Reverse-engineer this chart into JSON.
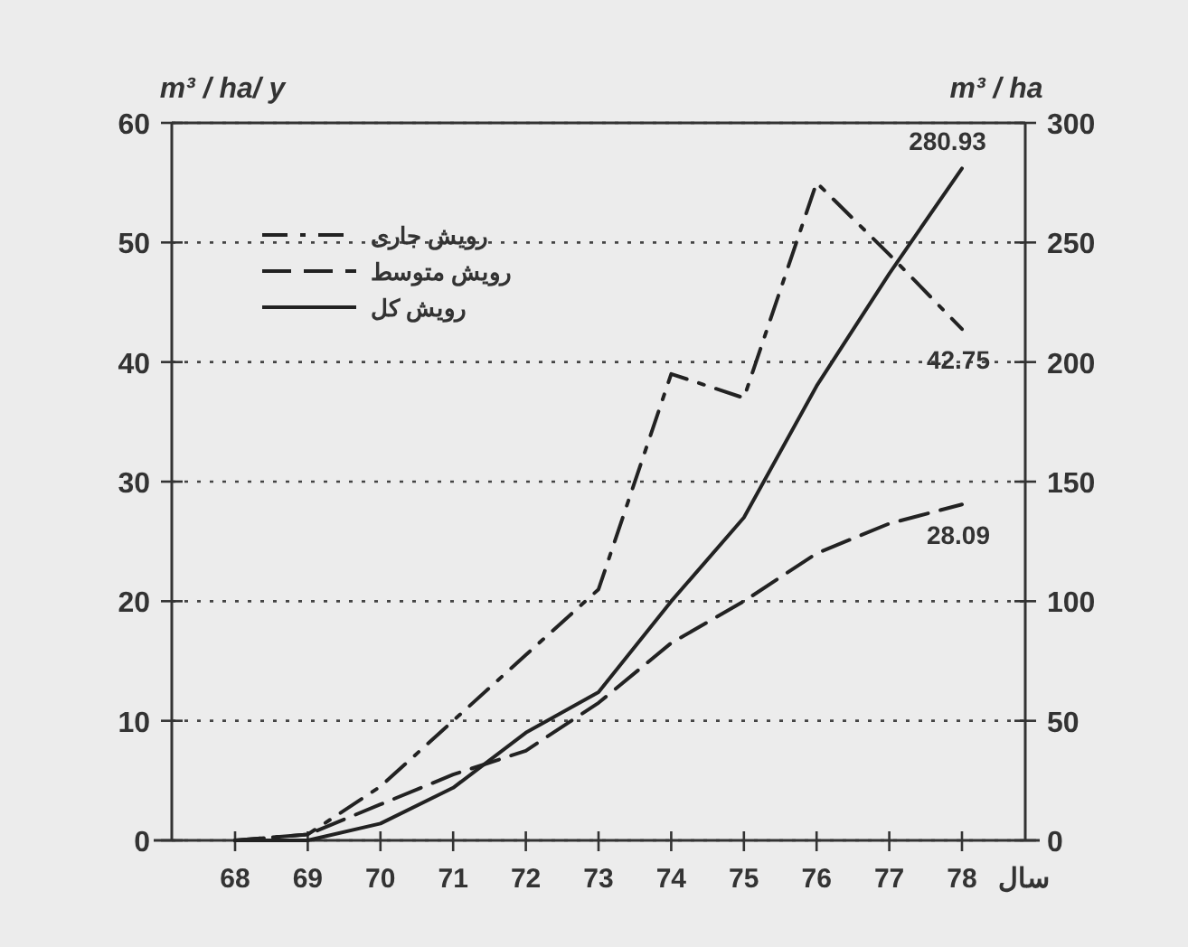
{
  "chart_data": {
    "type": "line",
    "categories": [
      "68",
      "69",
      "70",
      "71",
      "72",
      "73",
      "74",
      "75",
      "76",
      "77",
      "78"
    ],
    "xlabel": "سال",
    "ylabel": "m³ / ha/ y",
    "y2label": "m³ / ha",
    "ylim": [
      0,
      60
    ],
    "yticks": [
      0,
      10,
      20,
      30,
      40,
      50,
      60
    ],
    "y2lim": [
      0,
      300
    ],
    "y2ticks": [
      0,
      50,
      100,
      150,
      200,
      250,
      300
    ],
    "grid": "y",
    "legend": "top left",
    "series": [
      {
        "name": "رویش جاری",
        "color": "#222222",
        "line_style": "dashdot",
        "values": [
          0,
          0.5,
          4.5,
          10,
          15.5,
          21,
          39,
          37,
          55,
          49,
          42.75
        ],
        "value_labels": [
          null,
          null,
          null,
          null,
          null,
          null,
          null,
          null,
          null,
          null,
          "42.75"
        ]
      },
      {
        "name": "رویش متوسط",
        "color": "#222222",
        "line_style": "dashed",
        "values": [
          0,
          0.5,
          3,
          5.5,
          7.5,
          11.5,
          16.5,
          20,
          24,
          26.5,
          28.09
        ],
        "value_labels": [
          null,
          null,
          null,
          null,
          null,
          null,
          null,
          null,
          null,
          null,
          "28.09"
        ]
      },
      {
        "name": "رویش کل",
        "color": "#222222",
        "line_style": "solid",
        "axis": "y2",
        "values": [
          0,
          0,
          7,
          22,
          45,
          62,
          100,
          135,
          190,
          237,
          280.93
        ],
        "value_labels": [
          null,
          null,
          null,
          null,
          null,
          null,
          null,
          null,
          null,
          null,
          "280.93"
        ]
      }
    ]
  }
}
